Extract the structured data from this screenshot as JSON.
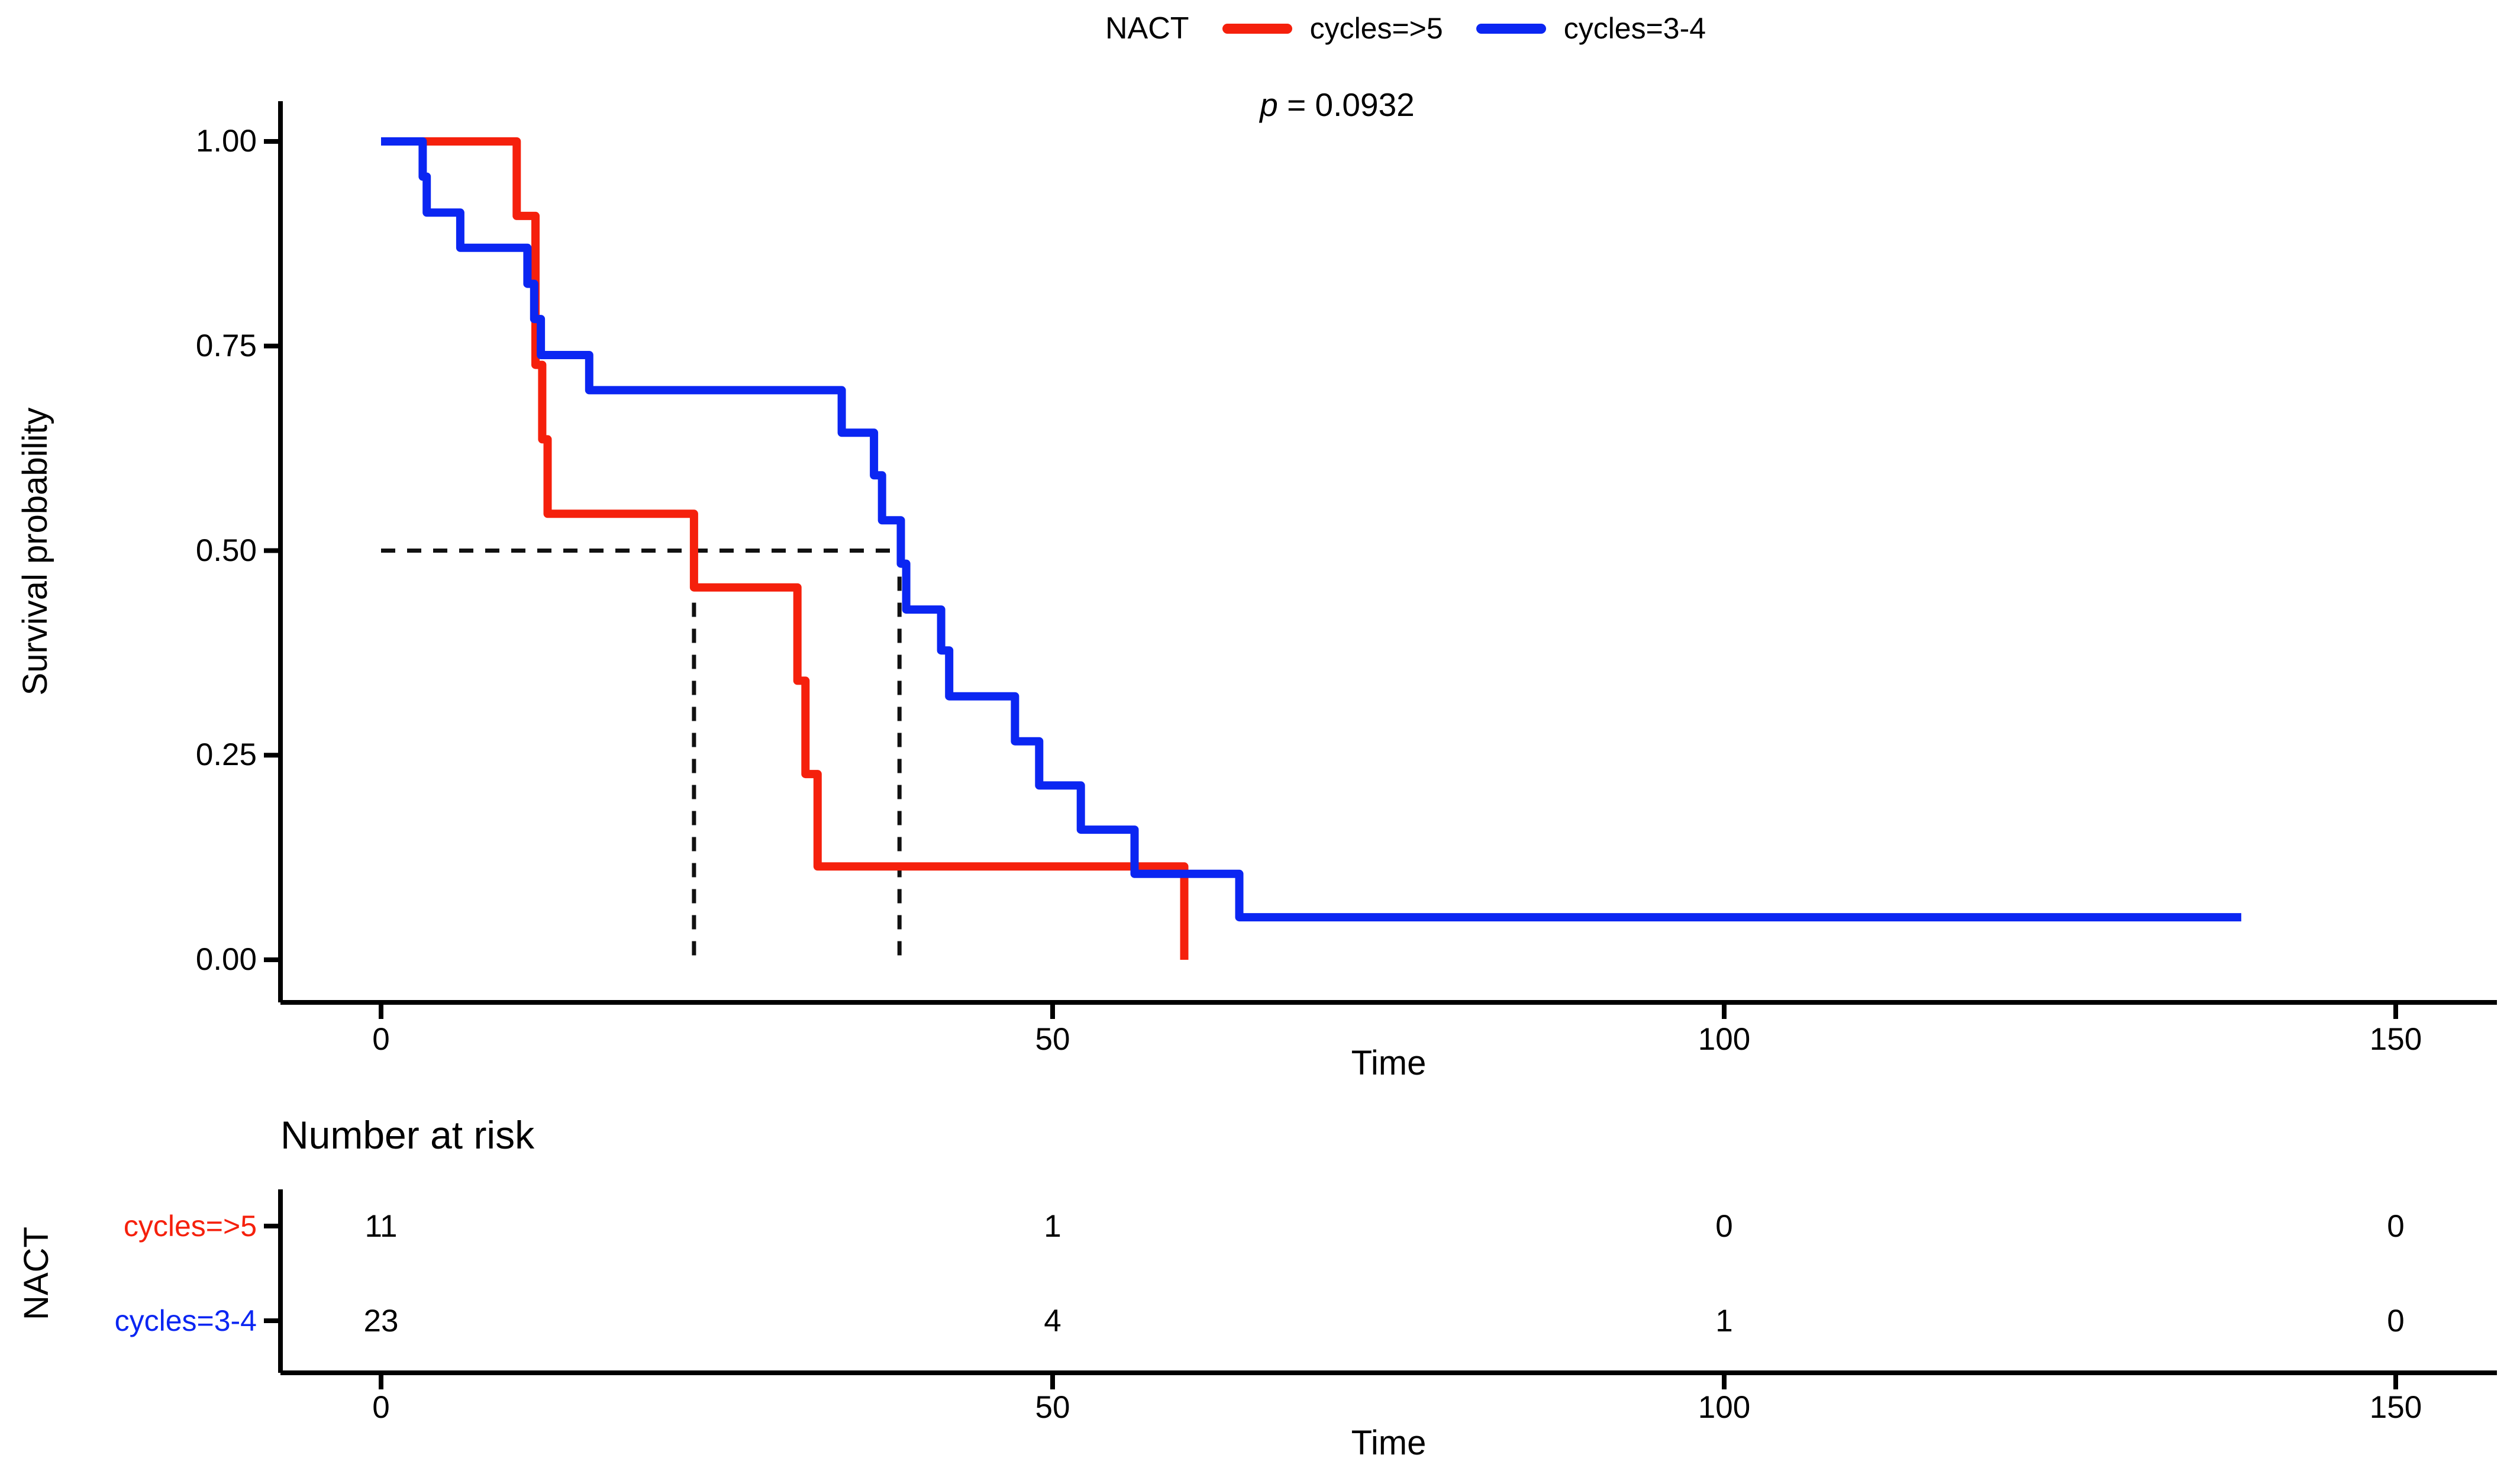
{
  "legend": {
    "title": "NACT",
    "items": [
      {
        "label": "cycles=>5",
        "color": "#F5200C"
      },
      {
        "label": "cycles=3-4",
        "color": "#0B26F2"
      }
    ]
  },
  "pvalue": {
    "symbol": "p",
    "rest": " = 0.0932"
  },
  "chart_data": {
    "type": "line",
    "subtype": "kaplan_meier_step",
    "title": "",
    "xlabel": "Time",
    "ylabel": "Survival probability",
    "xlim": [
      0,
      150
    ],
    "ylim": [
      0,
      1
    ],
    "grid": false,
    "legend_position": "top",
    "p_value_label": "p = 0.0932",
    "median_survival_probability": 0.5,
    "x_ticks": [
      {
        "value": 0,
        "label": "0"
      },
      {
        "value": 50,
        "label": "50"
      },
      {
        "value": 100,
        "label": "100"
      },
      {
        "value": 150,
        "label": "150"
      }
    ],
    "y_ticks": [
      {
        "value": 1.0,
        "label": "1.00"
      },
      {
        "value": 0.75,
        "label": "0.75"
      },
      {
        "value": 0.5,
        "label": "0.50"
      },
      {
        "value": 0.25,
        "label": "0.25"
      },
      {
        "value": 0.0,
        "label": "0.00"
      }
    ],
    "series": [
      {
        "name": "cycles=>5",
        "color": "#F5200C",
        "median_time": 23.3,
        "points": [
          [
            0,
            1.0
          ],
          [
            10.1,
            1.0
          ],
          [
            10.1,
            0.909
          ],
          [
            11.5,
            0.909
          ],
          [
            11.5,
            0.727
          ],
          [
            12.0,
            0.727
          ],
          [
            12.0,
            0.636
          ],
          [
            12.4,
            0.636
          ],
          [
            12.4,
            0.545
          ],
          [
            23.3,
            0.545
          ],
          [
            23.3,
            0.455
          ],
          [
            31.0,
            0.455
          ],
          [
            31.0,
            0.341
          ],
          [
            31.6,
            0.341
          ],
          [
            31.6,
            0.227
          ],
          [
            32.5,
            0.227
          ],
          [
            32.5,
            0.114
          ],
          [
            59.8,
            0.114
          ],
          [
            59.8,
            0.0
          ]
        ]
      },
      {
        "name": "cycles=3-4",
        "color": "#0B26F2",
        "median_time": 38.6,
        "points": [
          [
            0,
            1.0
          ],
          [
            3.1,
            1.0
          ],
          [
            3.1,
            0.957
          ],
          [
            3.4,
            0.957
          ],
          [
            3.4,
            0.913
          ],
          [
            5.9,
            0.913
          ],
          [
            5.9,
            0.87
          ],
          [
            10.9,
            0.87
          ],
          [
            10.9,
            0.826
          ],
          [
            11.4,
            0.826
          ],
          [
            11.4,
            0.783
          ],
          [
            11.9,
            0.783
          ],
          [
            11.9,
            0.739
          ],
          [
            15.5,
            0.739
          ],
          [
            15.5,
            0.696
          ],
          [
            34.3,
            0.696
          ],
          [
            34.3,
            0.644
          ],
          [
            36.7,
            0.644
          ],
          [
            36.7,
            0.592
          ],
          [
            37.3,
            0.592
          ],
          [
            37.3,
            0.537
          ],
          [
            38.7,
            0.537
          ],
          [
            38.7,
            0.484
          ],
          [
            39.1,
            0.484
          ],
          [
            39.1,
            0.428
          ],
          [
            41.7,
            0.428
          ],
          [
            41.7,
            0.378
          ],
          [
            42.3,
            0.378
          ],
          [
            42.3,
            0.322
          ],
          [
            47.2,
            0.322
          ],
          [
            47.2,
            0.267
          ],
          [
            49.0,
            0.267
          ],
          [
            49.0,
            0.213
          ],
          [
            52.1,
            0.213
          ],
          [
            52.1,
            0.159
          ],
          [
            56.1,
            0.159
          ],
          [
            56.1,
            0.105
          ],
          [
            63.9,
            0.105
          ],
          [
            63.9,
            0.052
          ],
          [
            138.5,
            0.052
          ]
        ]
      }
    ]
  },
  "risk_table": {
    "title": "Number at risk",
    "axis_label": "NACT",
    "xlabel": "Time",
    "x_ticks": [
      {
        "value": 0,
        "label": "0"
      },
      {
        "value": 50,
        "label": "50"
      },
      {
        "value": 100,
        "label": "100"
      },
      {
        "value": 150,
        "label": "150"
      }
    ],
    "rows": [
      {
        "label": "cycles=>5",
        "color": "#F5200C",
        "values": [
          "11",
          "1",
          "0",
          "0"
        ]
      },
      {
        "label": "cycles=3-4",
        "color": "#0B26F2",
        "values": [
          "23",
          "4",
          "1",
          "0"
        ]
      }
    ]
  }
}
